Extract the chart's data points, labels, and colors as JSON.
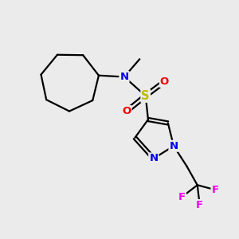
{
  "bg_color": "#ebebeb",
  "atom_colors": {
    "N": "#0000ee",
    "S": "#bbbb00",
    "O": "#ee0000",
    "F": "#ee00ee",
    "C": "#000000"
  },
  "bond_color": "#000000",
  "fig_size": [
    3.0,
    3.0
  ],
  "dpi": 100,
  "lw": 1.6,
  "font_size": 9.5
}
